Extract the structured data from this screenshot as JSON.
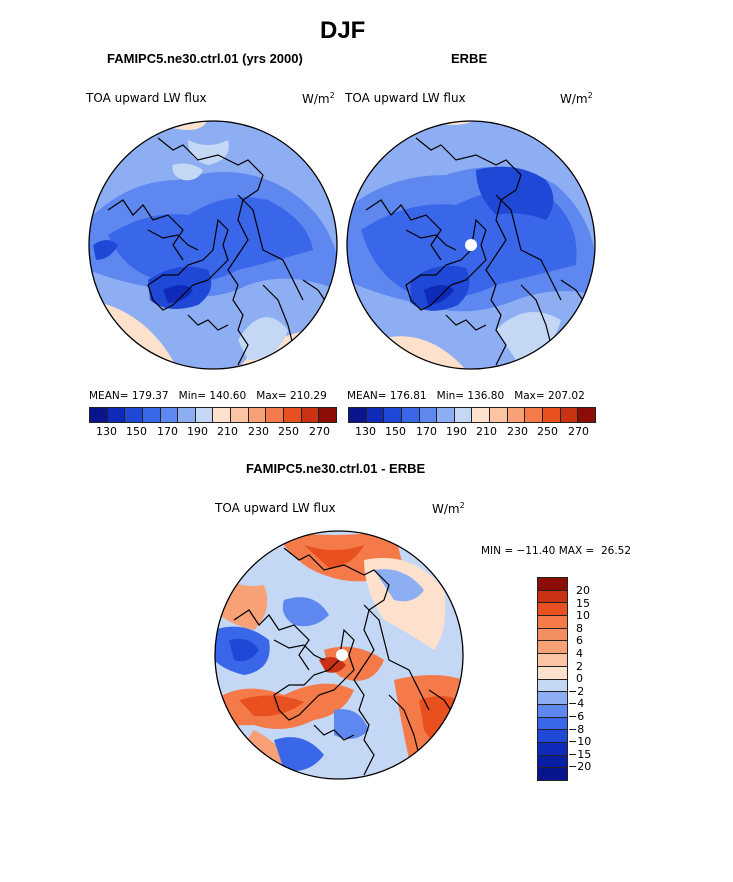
{
  "figure": {
    "title": "DJF",
    "colors": {
      "c1": "#08158c",
      "c2": "#0f2ab8",
      "c3": "#1f48d6",
      "c4": "#3a67ea",
      "c5": "#5e88f0",
      "c6": "#8eaef3",
      "c7": "#c4d8f6",
      "w1": "#fde1cc",
      "w2": "#fbc4a2",
      "w3": "#f8a076",
      "w4": "#f47a4a",
      "w5": "#e8501f",
      "w6": "#c93212",
      "w7": "#8c0c06"
    }
  },
  "panels": {
    "model": {
      "heading": "FAMIPC5.ne30.ctrl.01 (yrs 2000)",
      "variable": "TOA upward LW flux",
      "units_base": "W/m",
      "units_exp": "2",
      "mean_label": "MEAN=",
      "mean_value": "179.37",
      "min_label": "Min=",
      "min_value": "140.60",
      "max_label": "Max=",
      "max_value": "210.29"
    },
    "obs": {
      "heading": "ERBE",
      "variable": "TOA upward LW flux",
      "units_base": "W/m",
      "units_exp": "2",
      "mean_label": "MEAN=",
      "mean_value": "176.81",
      "min_label": "Min=",
      "min_value": "136.80",
      "max_label": "Max=",
      "max_value": "207.02"
    },
    "diff": {
      "heading": "FAMIPC5.ne30.ctrl.01 - ERBE",
      "variable": "TOA upward LW flux",
      "units_base": "W/m",
      "units_exp": "2",
      "min_label": "MIN =",
      "min_value": "−11.40",
      "max_label": "MAX =",
      "max_value": "26.52"
    }
  },
  "colorbar_abs": {
    "tick_labels": [
      "130",
      "150",
      "170",
      "190",
      "210",
      "230",
      "250",
      "270"
    ]
  },
  "colorbar_diff": {
    "tick_labels": [
      "20",
      "15",
      "10",
      "8",
      "6",
      "4",
      "2",
      "0",
      "−2",
      "−4",
      "−6",
      "−8",
      "−10",
      "−15",
      "−20"
    ]
  }
}
